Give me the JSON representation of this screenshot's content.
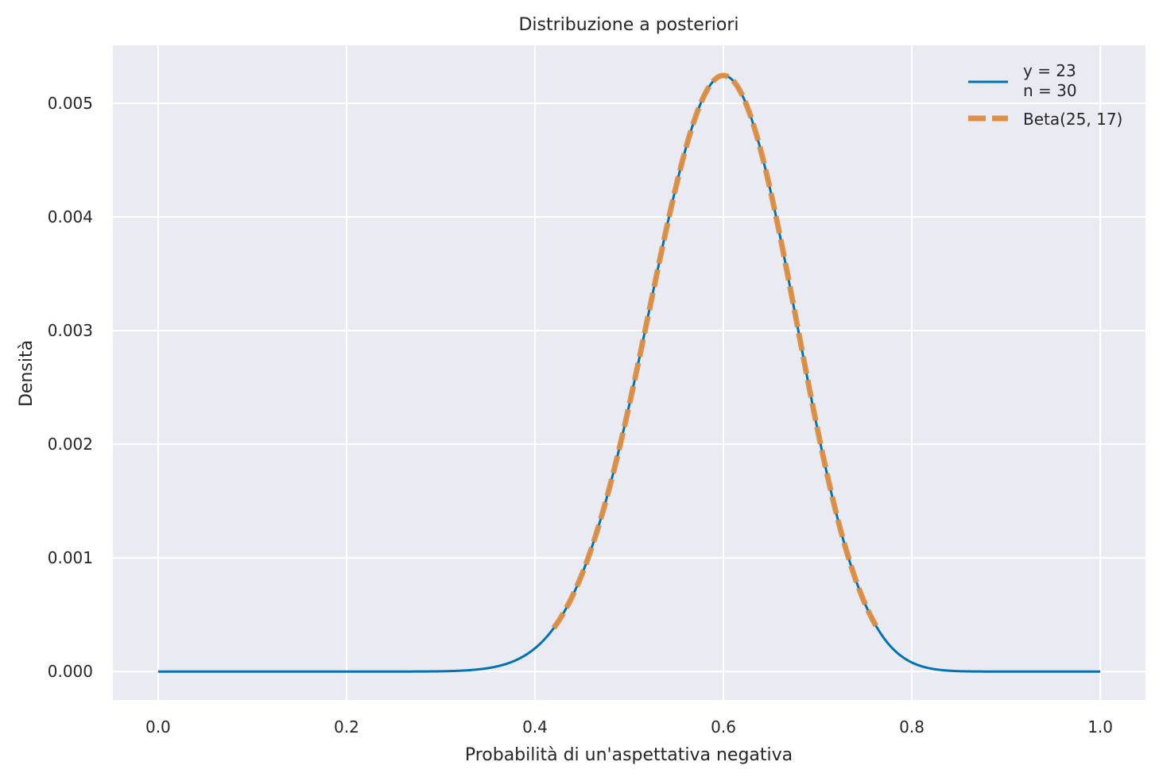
{
  "chart_data": {
    "type": "line",
    "title": "Distribuzione a posteriori",
    "xlabel": "Probabilità di un'aspettativa negativa",
    "ylabel": "Densità",
    "xlim": [
      -0.048,
      1.048
    ],
    "ylim": [
      -0.00025,
      0.00551
    ],
    "xticks": [
      0.0,
      0.2,
      0.4,
      0.6,
      0.8,
      1.0
    ],
    "xtick_labels": [
      "0.0",
      "0.2",
      "0.4",
      "0.6",
      "0.8",
      "1.0"
    ],
    "yticks": [
      0.0,
      0.001,
      0.002,
      0.003,
      0.004,
      0.005
    ],
    "ytick_labels": [
      "0.000",
      "0.001",
      "0.002",
      "0.003",
      "0.004",
      "0.005"
    ],
    "grid": true,
    "legend_position": "top-right",
    "background": "#eaeaf2",
    "series": [
      {
        "name_lines": [
          "y = 23",
          "n = 30"
        ],
        "color": "#0173b2",
        "style": "solid",
        "distribution": "Beta(25, 17) normalized over a grid on [0, 1]",
        "x": [
          0.0,
          0.1,
          0.2,
          0.3,
          0.35,
          0.4,
          0.42,
          0.45,
          0.5,
          0.55,
          0.6,
          0.65,
          0.7,
          0.75,
          0.76,
          0.8,
          0.85,
          0.9,
          1.0
        ],
        "y": [
          0.0,
          0.0,
          0.0,
          1e-05,
          6e-05,
          0.00023,
          0.00036,
          0.00075,
          0.00227,
          0.00427,
          0.00525,
          0.00422,
          0.00217,
          0.00064,
          0.00047,
          0.00011,
          1e-05,
          0.0,
          0.0
        ]
      },
      {
        "name": "Beta(25, 17)",
        "color": "#de8f45",
        "style": "dashed",
        "x": [
          0.42,
          0.45,
          0.5,
          0.55,
          0.6,
          0.65,
          0.7,
          0.75,
          0.762
        ],
        "y": [
          0.00036,
          0.00075,
          0.00227,
          0.00427,
          0.00525,
          0.00422,
          0.00217,
          0.00064,
          0.00045
        ]
      }
    ]
  }
}
